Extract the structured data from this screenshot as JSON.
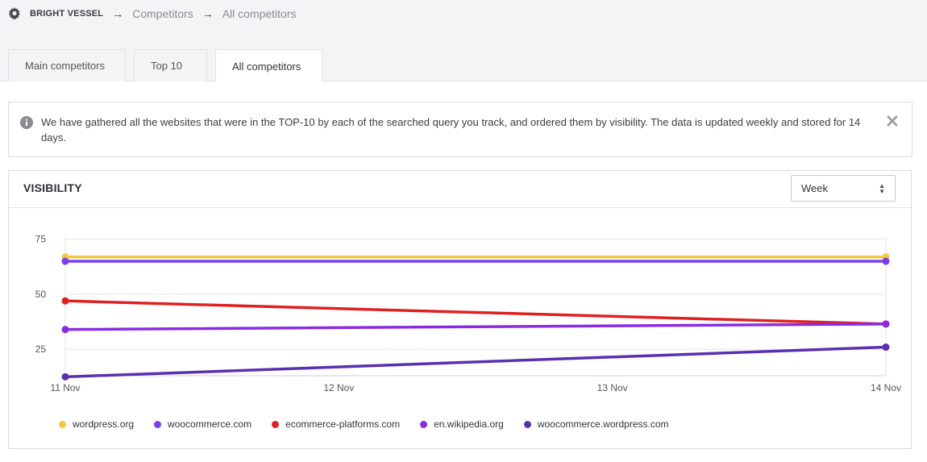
{
  "breadcrumb": {
    "org": "BRIGHT VESSEL",
    "items": [
      "Competitors",
      "All competitors"
    ],
    "separator": "→"
  },
  "tabs": [
    {
      "label": "Main competitors",
      "active": false
    },
    {
      "label": "Top 10",
      "active": false
    },
    {
      "label": "All competitors",
      "active": true
    }
  ],
  "alert": {
    "text": "We have gathered all the websites that were in the TOP-10 by each of the searched query you track, and ordered them by visibility. The data is updated weekly and stored for 14 days."
  },
  "visibility": {
    "title": "VISIBILITY",
    "period_select": {
      "value": "Week"
    }
  },
  "chart_data": {
    "type": "line",
    "x": [
      "11 Nov",
      "12 Nov",
      "13 Nov",
      "14 Nov"
    ],
    "yticks": [
      25,
      50,
      75
    ],
    "ylim": [
      13,
      76
    ],
    "grid": true,
    "legend_position": "bottom-left",
    "series": [
      {
        "name": "wordpress.org",
        "color": "#f5c842",
        "points": [
          [
            0,
            67
          ],
          [
            3,
            67
          ]
        ]
      },
      {
        "name": "woocommerce.com",
        "color": "#7b3ff2",
        "points": [
          [
            0,
            65
          ],
          [
            3,
            65
          ]
        ]
      },
      {
        "name": "ecommerce-platforms.com",
        "color": "#e02020",
        "points": [
          [
            0,
            47
          ],
          [
            3,
            36.5
          ]
        ]
      },
      {
        "name": "en.wikipedia.org",
        "color": "#8a2be2",
        "points": [
          [
            0,
            34
          ],
          [
            3,
            36.5
          ]
        ]
      },
      {
        "name": "woocommerce.wordpress.com",
        "color": "#5b2fb0",
        "points": [
          [
            0,
            12.5
          ],
          [
            3,
            26
          ]
        ]
      }
    ]
  }
}
